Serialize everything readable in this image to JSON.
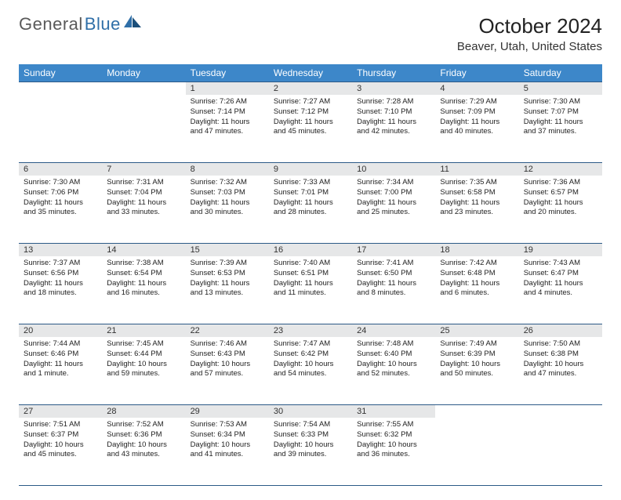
{
  "logo": {
    "text1": "General",
    "text2": "Blue"
  },
  "title": "October 2024",
  "location": "Beaver, Utah, United States",
  "header_bg": "#3d87c9",
  "header_fg": "#ffffff",
  "daynum_bg": "#e6e7e8",
  "rule_color": "#2c5a87",
  "weekdays": [
    "Sunday",
    "Monday",
    "Tuesday",
    "Wednesday",
    "Thursday",
    "Friday",
    "Saturday"
  ],
  "weeks": [
    [
      null,
      null,
      {
        "n": "1",
        "sunrise": "7:26 AM",
        "sunset": "7:14 PM",
        "daylight": "11 hours and 47 minutes."
      },
      {
        "n": "2",
        "sunrise": "7:27 AM",
        "sunset": "7:12 PM",
        "daylight": "11 hours and 45 minutes."
      },
      {
        "n": "3",
        "sunrise": "7:28 AM",
        "sunset": "7:10 PM",
        "daylight": "11 hours and 42 minutes."
      },
      {
        "n": "4",
        "sunrise": "7:29 AM",
        "sunset": "7:09 PM",
        "daylight": "11 hours and 40 minutes."
      },
      {
        "n": "5",
        "sunrise": "7:30 AM",
        "sunset": "7:07 PM",
        "daylight": "11 hours and 37 minutes."
      }
    ],
    [
      {
        "n": "6",
        "sunrise": "7:30 AM",
        "sunset": "7:06 PM",
        "daylight": "11 hours and 35 minutes."
      },
      {
        "n": "7",
        "sunrise": "7:31 AM",
        "sunset": "7:04 PM",
        "daylight": "11 hours and 33 minutes."
      },
      {
        "n": "8",
        "sunrise": "7:32 AM",
        "sunset": "7:03 PM",
        "daylight": "11 hours and 30 minutes."
      },
      {
        "n": "9",
        "sunrise": "7:33 AM",
        "sunset": "7:01 PM",
        "daylight": "11 hours and 28 minutes."
      },
      {
        "n": "10",
        "sunrise": "7:34 AM",
        "sunset": "7:00 PM",
        "daylight": "11 hours and 25 minutes."
      },
      {
        "n": "11",
        "sunrise": "7:35 AM",
        "sunset": "6:58 PM",
        "daylight": "11 hours and 23 minutes."
      },
      {
        "n": "12",
        "sunrise": "7:36 AM",
        "sunset": "6:57 PM",
        "daylight": "11 hours and 20 minutes."
      }
    ],
    [
      {
        "n": "13",
        "sunrise": "7:37 AM",
        "sunset": "6:56 PM",
        "daylight": "11 hours and 18 minutes."
      },
      {
        "n": "14",
        "sunrise": "7:38 AM",
        "sunset": "6:54 PM",
        "daylight": "11 hours and 16 minutes."
      },
      {
        "n": "15",
        "sunrise": "7:39 AM",
        "sunset": "6:53 PM",
        "daylight": "11 hours and 13 minutes."
      },
      {
        "n": "16",
        "sunrise": "7:40 AM",
        "sunset": "6:51 PM",
        "daylight": "11 hours and 11 minutes."
      },
      {
        "n": "17",
        "sunrise": "7:41 AM",
        "sunset": "6:50 PM",
        "daylight": "11 hours and 8 minutes."
      },
      {
        "n": "18",
        "sunrise": "7:42 AM",
        "sunset": "6:48 PM",
        "daylight": "11 hours and 6 minutes."
      },
      {
        "n": "19",
        "sunrise": "7:43 AM",
        "sunset": "6:47 PM",
        "daylight": "11 hours and 4 minutes."
      }
    ],
    [
      {
        "n": "20",
        "sunrise": "7:44 AM",
        "sunset": "6:46 PM",
        "daylight": "11 hours and 1 minute."
      },
      {
        "n": "21",
        "sunrise": "7:45 AM",
        "sunset": "6:44 PM",
        "daylight": "10 hours and 59 minutes."
      },
      {
        "n": "22",
        "sunrise": "7:46 AM",
        "sunset": "6:43 PM",
        "daylight": "10 hours and 57 minutes."
      },
      {
        "n": "23",
        "sunrise": "7:47 AM",
        "sunset": "6:42 PM",
        "daylight": "10 hours and 54 minutes."
      },
      {
        "n": "24",
        "sunrise": "7:48 AM",
        "sunset": "6:40 PM",
        "daylight": "10 hours and 52 minutes."
      },
      {
        "n": "25",
        "sunrise": "7:49 AM",
        "sunset": "6:39 PM",
        "daylight": "10 hours and 50 minutes."
      },
      {
        "n": "26",
        "sunrise": "7:50 AM",
        "sunset": "6:38 PM",
        "daylight": "10 hours and 47 minutes."
      }
    ],
    [
      {
        "n": "27",
        "sunrise": "7:51 AM",
        "sunset": "6:37 PM",
        "daylight": "10 hours and 45 minutes."
      },
      {
        "n": "28",
        "sunrise": "7:52 AM",
        "sunset": "6:36 PM",
        "daylight": "10 hours and 43 minutes."
      },
      {
        "n": "29",
        "sunrise": "7:53 AM",
        "sunset": "6:34 PM",
        "daylight": "10 hours and 41 minutes."
      },
      {
        "n": "30",
        "sunrise": "7:54 AM",
        "sunset": "6:33 PM",
        "daylight": "10 hours and 39 minutes."
      },
      {
        "n": "31",
        "sunrise": "7:55 AM",
        "sunset": "6:32 PM",
        "daylight": "10 hours and 36 minutes."
      },
      null,
      null
    ]
  ],
  "labels": {
    "sunrise": "Sunrise:",
    "sunset": "Sunset:",
    "daylight": "Daylight:"
  }
}
